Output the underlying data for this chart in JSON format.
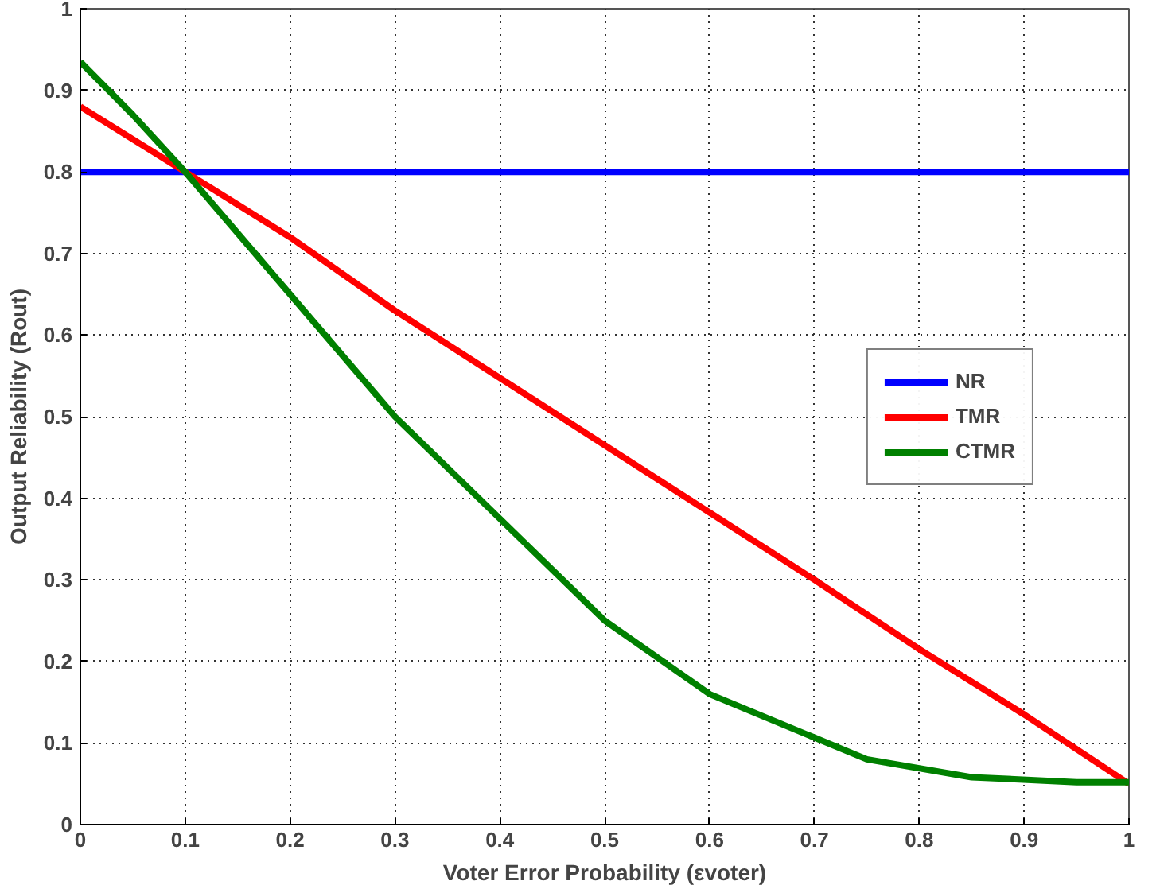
{
  "chart_data": {
    "type": "line",
    "xlabel": "Voter Error Probability (εvoter)",
    "ylabel": "Output Reliability (Rout)",
    "xlim": [
      0,
      1
    ],
    "ylim": [
      0,
      1
    ],
    "xticks": [
      0,
      0.1,
      0.2,
      0.3,
      0.4,
      0.5,
      0.6,
      0.7,
      0.8,
      0.9,
      1
    ],
    "yticks": [
      0,
      0.1,
      0.2,
      0.3,
      0.4,
      0.5,
      0.6,
      0.7,
      0.8,
      0.9,
      1
    ],
    "grid": true,
    "legend": "right",
    "line_style": "solid",
    "marker": "none",
    "series": [
      {
        "name": "NR",
        "color": "#0000ff",
        "x": [
          0,
          1
        ],
        "values": [
          0.8,
          0.8
        ]
      },
      {
        "name": "TMR",
        "color": "#ff0000",
        "x": [
          0,
          0.1,
          0.2,
          0.3,
          0.5,
          0.7,
          0.8,
          0.9,
          1
        ],
        "values": [
          0.88,
          0.8,
          0.72,
          0.63,
          0.465,
          0.3,
          0.215,
          0.135,
          0.05
        ]
      },
      {
        "name": "CTMR",
        "color": "#008000",
        "x": [
          0,
          0.05,
          0.1,
          0.2,
          0.3,
          0.4,
          0.5,
          0.6,
          0.75,
          0.85,
          0.95,
          1
        ],
        "values": [
          0.935,
          0.87,
          0.8,
          0.65,
          0.5,
          0.375,
          0.25,
          0.16,
          0.08,
          0.058,
          0.052,
          0.052
        ]
      }
    ]
  }
}
